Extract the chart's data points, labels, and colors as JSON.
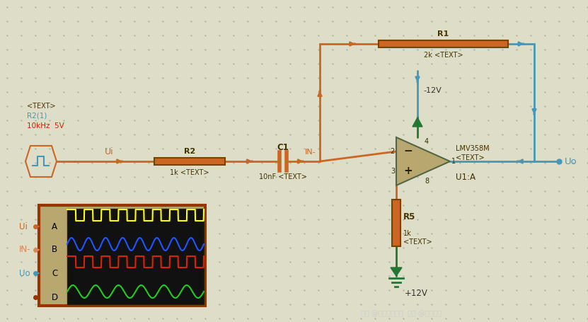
{
  "bg_color": "#ddddc8",
  "dot_color": "#aaaaaa",
  "figsize": [
    8.31,
    4.55
  ],
  "dpi": 100,
  "c_orange": "#cc6622",
  "c_blue": "#4499bb",
  "c_green": "#227733",
  "c_darkred": "#993300",
  "c_red": "#cc2200",
  "labels": {
    "R1": "R1",
    "R1_val": "2k <TEXT>",
    "minus12V": "-12V",
    "R2": "R2",
    "R2_val": "1k <TEXT>",
    "C1": "C1",
    "C1_val": "10nF <TEXT>",
    "R5": "R5",
    "R5_val": "1k\n<TEXT>",
    "U1A": "U1:A",
    "opamp_txt": "<TEXT>",
    "opamp_model": "LMV358M",
    "Ui": "Ui",
    "Uo": "Uo",
    "freq": "10kHz  5V",
    "R21": "R2(1)",
    "text_label": "<TEXT>",
    "plus12": "+12V",
    "IN_minus": "IN-",
    "pin2": "2",
    "pin3": "3",
    "pin1": "1",
    "pin4": "4",
    "pin8": "8",
    "scopeA": "A",
    "scopeB": "B",
    "scopeC": "C",
    "scopeD": "D",
    "scopeUi": "Ui",
    "scopeIN": "IN-",
    "scopeUo": "Uo",
    "watermark": "知乎 @嵌入式程序员  关注 @电路药丸"
  }
}
